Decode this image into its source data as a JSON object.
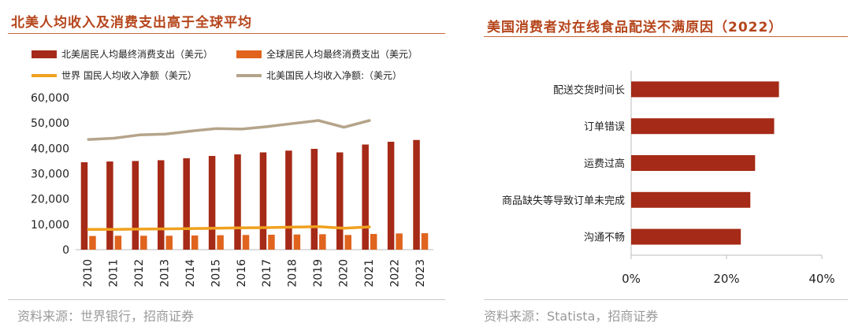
{
  "left": {
    "title": "北美人均收入及消费支出高于全球平均",
    "source": "资料来源：世界银行，招商证券",
    "chart_data": {
      "type": "bar",
      "categories": [
        "2010",
        "2011",
        "2012",
        "2013",
        "2014",
        "2015",
        "2016",
        "2017",
        "2018",
        "2019",
        "2020",
        "2021",
        "2022",
        "2023"
      ],
      "ylim": [
        0,
        60000
      ],
      "yticks": [
        "0",
        "10,000",
        "20,000",
        "30,000",
        "40,000",
        "50,000",
        "60,000"
      ],
      "series": [
        {
          "name": "北美居民人均最终消费支出（美元）",
          "kind": "bar",
          "color": "#a52a17",
          "values": [
            34500,
            34800,
            35000,
            35300,
            36100,
            37000,
            37600,
            38400,
            39100,
            39800,
            38400,
            41500,
            42600,
            43300
          ]
        },
        {
          "name": "全球居民人均最终消费支出（美元）",
          "kind": "bar",
          "color": "#e0641e",
          "values": [
            5400,
            5500,
            5500,
            5500,
            5600,
            5700,
            5800,
            5900,
            6000,
            6100,
            5800,
            6200,
            6400,
            6500
          ]
        },
        {
          "name": "世界  国民人均收入净额（美元）",
          "kind": "line",
          "color": "#f0a11f",
          "values": [
            8000,
            8000,
            8100,
            8200,
            8300,
            8500,
            8600,
            8700,
            8900,
            9100,
            8500,
            9000,
            null,
            null
          ]
        },
        {
          "name": "北美国民人均收入净额:（美元）",
          "kind": "line",
          "color": "#b5a48a",
          "values": [
            43500,
            44000,
            45300,
            45600,
            46800,
            47800,
            47600,
            48600,
            49800,
            51000,
            48300,
            51000,
            null,
            null
          ]
        }
      ]
    }
  },
  "right": {
    "title": "美国消费者对在线食品配送不满原因（2022）",
    "source": "资料来源：Statista，招商证券",
    "chart_data": {
      "type": "bar",
      "orientation": "horizontal",
      "categories": [
        "配送交货时间长",
        "订单错误",
        "运费过高",
        "商品缺失等导致订单未完成",
        "沟通不畅"
      ],
      "values": [
        31,
        30,
        26,
        25,
        23
      ],
      "xlim": [
        0,
        40
      ],
      "xticks": [
        "0%",
        "20%",
        "40%"
      ],
      "color": "#a52a17"
    }
  }
}
